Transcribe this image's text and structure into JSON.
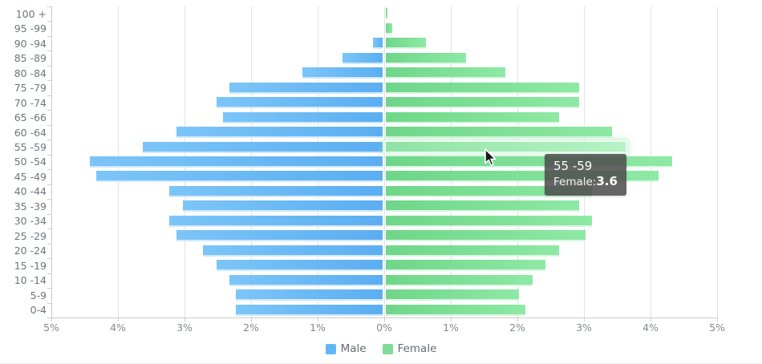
{
  "chart_data": {
    "type": "bar",
    "subtype": "population-pyramid",
    "orientation": "horizontal-bidirectional",
    "categories": [
      "100 +",
      "95 -99",
      "90 -94",
      "85 -89",
      "80 -84",
      "75 -79",
      "70 -74",
      "65 -66",
      "60 -64",
      "55 -59",
      "50 -54",
      "45 -49",
      "40 -44",
      "35 -39",
      "30 -34",
      "25 -29",
      "20 -24",
      "15 -19",
      "10 -14",
      "5-9",
      "0-4"
    ],
    "series": [
      {
        "name": "Male",
        "side": "left",
        "color": "#64b5f6",
        "values": [
          0,
          0,
          0.15,
          0.6,
          1.2,
          2.3,
          2.5,
          2.4,
          3.1,
          3.6,
          4.4,
          4.3,
          3.2,
          3.0,
          3.2,
          3.1,
          2.7,
          2.5,
          2.3,
          2.2,
          2.2
        ]
      },
      {
        "name": "Female",
        "side": "right",
        "color": "#7edd95",
        "values": [
          0.03,
          0.1,
          0.6,
          1.2,
          1.8,
          2.9,
          2.9,
          2.6,
          3.4,
          3.6,
          4.3,
          4.1,
          3.1,
          2.9,
          3.1,
          3.0,
          2.6,
          2.4,
          2.2,
          2.0,
          2.1
        ]
      }
    ],
    "x_axis": {
      "tick_labels": [
        "5%",
        "4%",
        "3%",
        "2%",
        "1%",
        "0%",
        "1%",
        "2%",
        "3%",
        "4%",
        "5%"
      ],
      "unit": "%",
      "max_each_side": 5
    },
    "ylim_note": "category axis, 21 age bands",
    "grid": true,
    "legend_position": "bottom",
    "highlight": {
      "category": "55 -59",
      "category_index": 9,
      "series": "Female",
      "value": 3.6
    }
  },
  "tooltip": {
    "title": "55 -59",
    "series_label": "Female:",
    "value": "3.6"
  },
  "legend": {
    "male": "Male",
    "female": "Female"
  },
  "colors": {
    "male": "#64b5f6",
    "female": "#7edd95",
    "female_hover": "#a5ecb8",
    "grid": "#e2e2e2",
    "axis": "#cccccc",
    "label": "#6f757b",
    "tooltip_bg": "rgba(78,78,78,0.87)",
    "tooltip_text": "#ffffff"
  }
}
